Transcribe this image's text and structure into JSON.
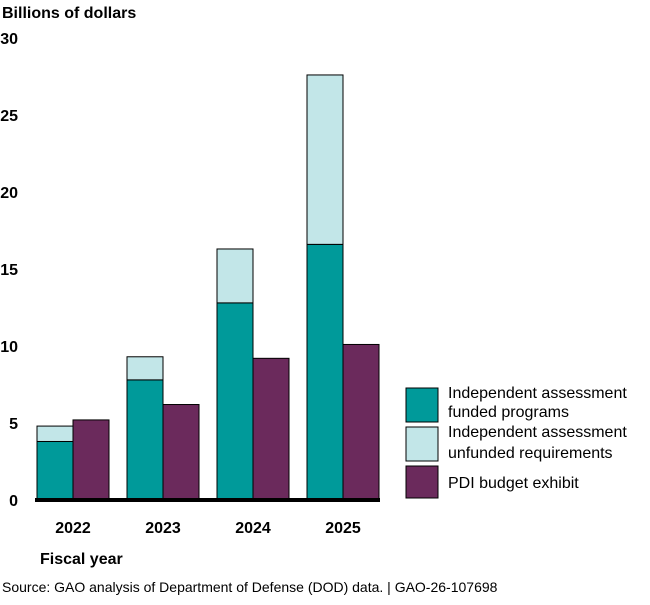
{
  "chart_data": {
    "type": "bar",
    "stacking": "stacked-plus-grouped",
    "ylabel": "Billions of dollars",
    "xlabel": "Fiscal year",
    "ylim": [
      0,
      30
    ],
    "yticks": [
      0,
      5,
      10,
      15,
      20,
      25,
      30
    ],
    "categories": [
      "2022",
      "2023",
      "2024",
      "2025"
    ],
    "series": [
      {
        "name": "Independent assessment funded programs",
        "legend_lines": [
          "Independent assessment",
          "funded programs"
        ],
        "stack": "assessment",
        "color": "#009a9a",
        "values": [
          3.8,
          7.8,
          12.8,
          16.6
        ]
      },
      {
        "name": "Independent assessment unfunded requirements",
        "legend_lines": [
          "Independent assessment",
          "unfunded requirements"
        ],
        "stack": "assessment",
        "color": "#c2e6e8",
        "values": [
          1.0,
          1.5,
          3.5,
          11.0
        ]
      },
      {
        "name": "PDI budget exhibit",
        "legend_lines": [
          "PDI budget exhibit"
        ],
        "stack": "pdi",
        "color": "#6b2a5c",
        "values": [
          5.2,
          6.2,
          9.2,
          10.1
        ]
      }
    ],
    "legend_position": "right",
    "grid": false
  },
  "footer": {
    "source": "Source: GAO analysis of Department of Defense (DOD) data.  |  GAO-26-107698"
  }
}
